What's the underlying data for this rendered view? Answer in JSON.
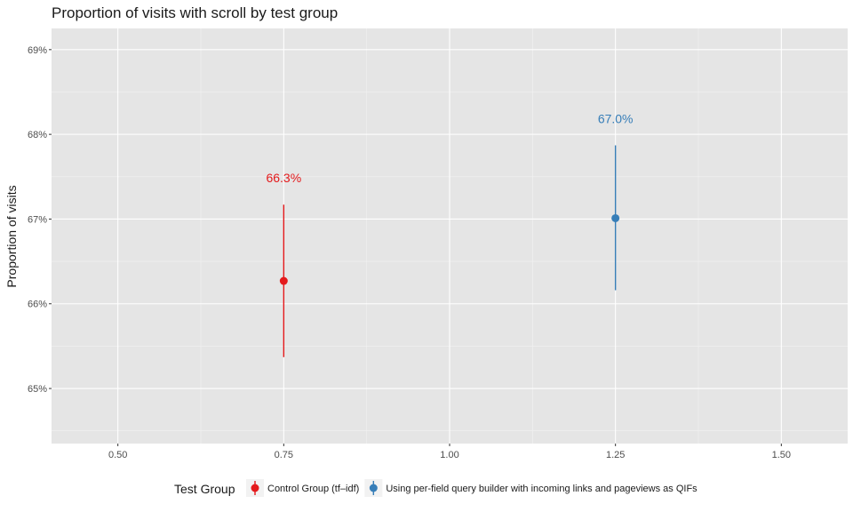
{
  "chart_data": {
    "type": "scatter",
    "title": "Proportion of visits with scroll by test group",
    "xlabel": "",
    "ylabel": "Proportion of visits",
    "xlim": [
      0.4,
      1.6
    ],
    "ylim": [
      64.35,
      69.25
    ],
    "x_ticks": [
      0.5,
      0.75,
      1.0,
      1.25,
      1.5
    ],
    "x_tick_labels": [
      "0.50",
      "0.75",
      "1.00",
      "1.25",
      "1.50"
    ],
    "y_ticks": [
      65,
      66,
      67,
      68,
      69
    ],
    "y_tick_labels": [
      "65%",
      "66%",
      "67%",
      "68%",
      "69%"
    ],
    "grid": true,
    "legend_title": "Test Group",
    "legend_position": "bottom",
    "series": [
      {
        "name": "Control Group (tf–idf)",
        "color": "#e41a1c",
        "x": 0.75,
        "y": 66.27,
        "lower": 65.37,
        "upper": 67.17,
        "label": "66.3%"
      },
      {
        "name": "Using per-field query builder with incoming links and pageviews as QIFs",
        "color": "#377eb8",
        "x": 1.25,
        "y": 67.01,
        "lower": 66.16,
        "upper": 67.87,
        "label": "67.0%"
      }
    ]
  }
}
